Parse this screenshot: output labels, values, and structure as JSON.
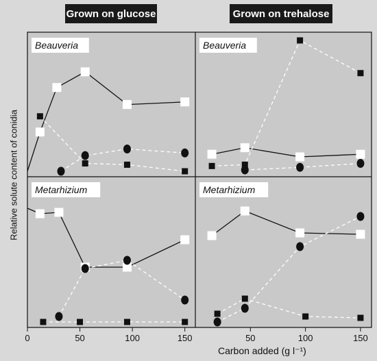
{
  "headers": {
    "left": "Grown on glucose",
    "right": "Grown on trehalose"
  },
  "ylabel": "Relative solute content of conidia",
  "xlabel": "Carbon added (g l⁻¹)",
  "chart_data": {
    "type": "line",
    "xlim": [
      0,
      160
    ],
    "ylim": [
      0,
      1
    ],
    "xticks": [
      0,
      50,
      100,
      150
    ],
    "series_styles": {
      "open_square": {
        "marker": "square-open",
        "line": "solid",
        "color": "#111111"
      },
      "filled_circle": {
        "marker": "circle",
        "line": "dashed",
        "color": "#ffffff"
      },
      "filled_square": {
        "marker": "square",
        "line": "dashed",
        "color": "#ffffff"
      }
    },
    "panels": [
      {
        "id": "glucose-beauveria",
        "label": "Beauveria",
        "col": 0,
        "row": 0,
        "series": [
          {
            "style": "open_square",
            "points": [
              [
                0,
                0.0
              ],
              [
                12,
                0.3
              ],
              [
                28,
                0.64
              ],
              [
                55,
                0.76
              ],
              [
                95,
                0.51
              ],
              [
                150,
                0.53
              ]
            ]
          },
          {
            "style": "filled_circle",
            "points": [
              [
                32,
                0.0
              ],
              [
                55,
                0.12
              ],
              [
                95,
                0.17
              ],
              [
                150,
                0.14
              ]
            ]
          },
          {
            "style": "filled_square",
            "points": [
              [
                12,
                0.42
              ],
              [
                55,
                0.06
              ],
              [
                95,
                0.05
              ],
              [
                150,
                0.0
              ]
            ]
          }
        ]
      },
      {
        "id": "trehalose-beauveria",
        "label": "Beauveria",
        "col": 1,
        "row": 0,
        "series": [
          {
            "style": "open_square",
            "points": [
              [
                15,
                0.13
              ],
              [
                45,
                0.18
              ],
              [
                95,
                0.11
              ],
              [
                150,
                0.13
              ]
            ]
          },
          {
            "style": "filled_circle",
            "points": [
              [
                45,
                0.01
              ],
              [
                95,
                0.03
              ],
              [
                150,
                0.06
              ]
            ]
          },
          {
            "style": "filled_square",
            "points": [
              [
                15,
                0.04
              ],
              [
                45,
                0.05
              ],
              [
                95,
                1.0
              ],
              [
                150,
                0.75
              ]
            ]
          }
        ]
      },
      {
        "id": "glucose-metarhizium",
        "label": "Metarhizium",
        "col": 0,
        "row": 1,
        "series": [
          {
            "style": "open_square",
            "points": [
              [
                0,
                0.83
              ],
              [
                12,
                0.79
              ],
              [
                30,
                0.8
              ],
              [
                55,
                0.4
              ],
              [
                95,
                0.4
              ],
              [
                150,
                0.6
              ]
            ]
          },
          {
            "style": "filled_circle",
            "points": [
              [
                30,
                0.04
              ],
              [
                55,
                0.39
              ],
              [
                95,
                0.45
              ],
              [
                150,
                0.16
              ]
            ]
          },
          {
            "style": "filled_square",
            "points": [
              [
                15,
                0.0
              ],
              [
                50,
                0.0
              ],
              [
                95,
                0.0
              ],
              [
                150,
                0.0
              ]
            ]
          }
        ]
      },
      {
        "id": "trehalose-metarhizium",
        "label": "Metarhizium",
        "col": 1,
        "row": 1,
        "series": [
          {
            "style": "open_square",
            "points": [
              [
                15,
                0.63
              ],
              [
                45,
                0.81
              ],
              [
                95,
                0.65
              ],
              [
                150,
                0.64
              ]
            ]
          },
          {
            "style": "filled_circle",
            "points": [
              [
                20,
                0.0
              ],
              [
                45,
                0.1
              ],
              [
                95,
                0.55
              ],
              [
                150,
                0.77
              ]
            ]
          },
          {
            "style": "filled_square",
            "points": [
              [
                20,
                0.06
              ],
              [
                45,
                0.17
              ],
              [
                100,
                0.04
              ],
              [
                150,
                0.03
              ]
            ]
          }
        ]
      }
    ]
  }
}
